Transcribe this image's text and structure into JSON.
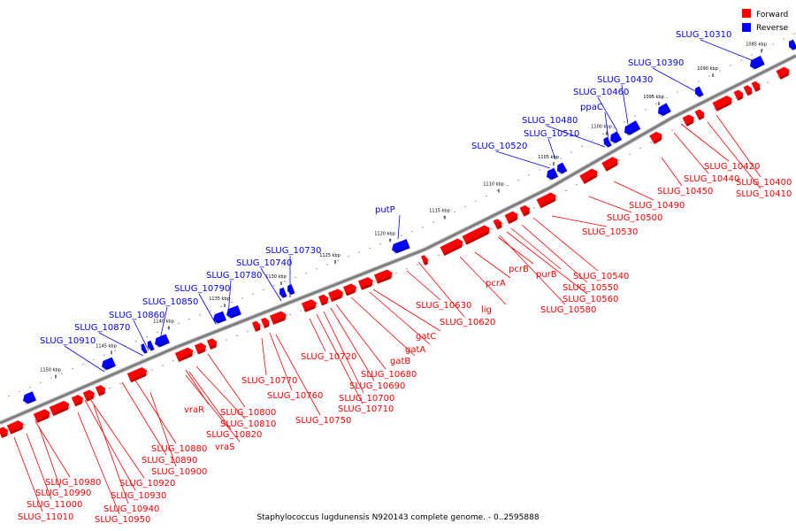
{
  "colors": {
    "forward": "#ff0000",
    "reverse": "#0000ff",
    "backbone": "#7f7f7f",
    "text": "#000000"
  },
  "legend": [
    {
      "label": "Forward",
      "color": "#ff0000"
    },
    {
      "label": "Reverse",
      "color": "#0000ff"
    }
  ],
  "caption": "Staphylococcus lugdunensis N920143 complete genome. - 0..2595888",
  "ruler_ticks": [
    "1085 kbp",
    "1090 kbp",
    "1095 kbp",
    "1100 kbp",
    "1105 kbp",
    "1110 kbp",
    "1115 kbp",
    "1120 kbp",
    "1125 kbp",
    "1130 kbp",
    "1135 kbp",
    "1140 kbp",
    "1145 kbp",
    "1150 kbp"
  ],
  "reverse_labels": [
    "SLUG_10310",
    "SLUG_10390",
    "SLUG_10430",
    "SLUG_10460",
    "ppaC",
    "SLUG_10480",
    "SLUG_10510",
    "SLUG_10520",
    "putP",
    "SLUG_10730",
    "SLUG_10740",
    "SLUG_10780",
    "SLUG_10790",
    "SLUG_10850",
    "SLUG_10860",
    "SLUG_10870",
    "SLUG_10910"
  ],
  "forward_labels": [
    "SLUG_10420",
    "SLUG_10440",
    "SLUG_10400",
    "SLUG_10410",
    "SLUG_10450",
    "SLUG_10490",
    "SLUG_10500",
    "SLUG_10530",
    "SLUG_10540",
    "SLUG_10550",
    "purB",
    "SLUG_10560",
    "pcrB",
    "SLUG_10580",
    "pcrA",
    "lig",
    "SLUG_10620",
    "SLUG_10630",
    "gatC",
    "gatA",
    "gatB",
    "SLUG_10680",
    "SLUG_10690",
    "SLUG_10700",
    "SLUG_10710",
    "SLUG_10720",
    "SLUG_10750",
    "SLUG_10760",
    "SLUG_10770",
    "SLUG_10800",
    "vraR",
    "SLUG_10810",
    "SLUG_10820",
    "vraS",
    "SLUG_10880",
    "SLUG_10890",
    "SLUG_10900",
    "SLUG_10920",
    "SLUG_10930",
    "SLUG_10940",
    "SLUG_10950",
    "SLUG_10980",
    "SLUG_10990",
    "SLUG_11000",
    "SLUG_11010"
  ]
}
